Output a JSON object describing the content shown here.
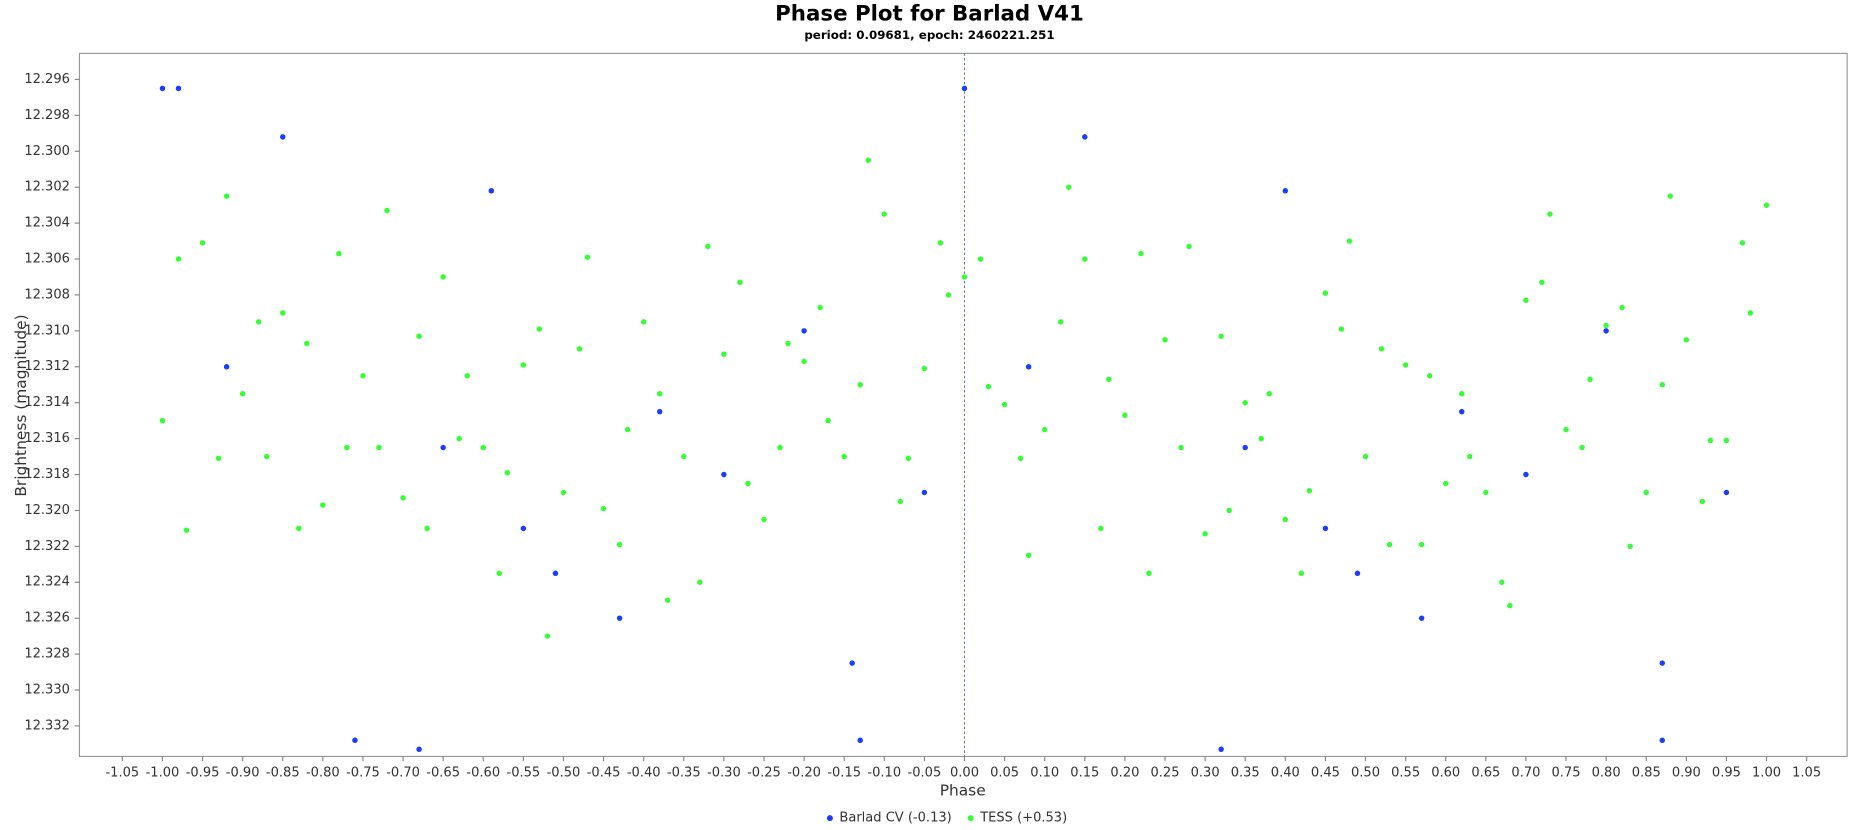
{
  "chart_data": {
    "type": "scatter",
    "title": "Phase Plot for Barlad V41",
    "subtitle": "period: 0.09681, epoch: 2460221.251",
    "x_label": "Phase",
    "y_label": "Brightness (magnitude)",
    "xlim": [
      -1.1035,
      1.1005
    ],
    "ylim": [
      12.29455,
      12.3337
    ],
    "invert_y": true,
    "grid": false,
    "legend_position": "bottom",
    "xticks": [
      -1.05,
      {
        "value": -1,
        "label": "-1.00"
      },
      -0.95,
      {
        "value": -0.9,
        "label": "-0.90"
      },
      -0.85,
      {
        "value": -0.8,
        "label": "-0.80"
      },
      -0.75,
      {
        "value": -0.7,
        "label": "-0.70"
      },
      -0.65,
      {
        "value": -0.6,
        "label": "-0.60"
      },
      -0.55,
      {
        "value": -0.5,
        "label": "-0.50"
      },
      -0.45,
      {
        "value": -0.4,
        "label": "-0.40"
      },
      -0.35,
      {
        "value": -0.3,
        "label": "-0.30"
      },
      -0.25,
      {
        "value": -0.2,
        "label": "-0.20"
      },
      -0.15,
      {
        "value": -0.1,
        "label": "-0.10"
      },
      -0.05,
      {
        "value": 0,
        "label": "0.00"
      },
      0.05,
      {
        "value": 0.1,
        "label": "0.10"
      },
      0.15,
      {
        "value": 0.2,
        "label": "0.20"
      },
      0.25,
      {
        "value": 0.3,
        "label": "0.30"
      },
      0.35,
      {
        "value": 0.4,
        "label": "0.40"
      },
      0.45,
      {
        "value": 0.5,
        "label": "0.50"
      },
      0.55,
      {
        "value": 0.6,
        "label": "0.60"
      },
      0.65,
      {
        "value": 0.7,
        "label": "0.70"
      },
      0.75,
      {
        "value": 0.8,
        "label": "0.80"
      },
      0.85,
      {
        "value": 0.9,
        "label": "0.90"
      },
      0.95,
      {
        "value": 1,
        "label": "1.00"
      },
      1.05
    ],
    "yticks": [
      12.296,
      12.298,
      {
        "value": 12.3,
        "label": "12.300"
      },
      12.302,
      12.304,
      12.306,
      12.308,
      {
        "value": 12.31,
        "label": "12.310"
      },
      12.312,
      12.314,
      12.316,
      12.318,
      {
        "value": 12.32,
        "label": "12.320"
      },
      12.322,
      12.324,
      12.326,
      12.328,
      {
        "value": 12.33,
        "label": "12.330"
      },
      12.332
    ],
    "series": [
      {
        "name": "TESS (+0.53)",
        "color": "#33ff33",
        "x": [
          -1,
          -0.95,
          -0.9,
          -0.85,
          -0.8,
          -0.75,
          -0.7,
          -0.65,
          -0.6,
          -0.55,
          -0.5,
          -0.45,
          -0.4,
          -0.35,
          -0.3,
          -0.25,
          -0.2,
          -0.15,
          -0.1,
          -0.05,
          0,
          0.05,
          0.1,
          0.15,
          0.2,
          0.25,
          0.3,
          0.35,
          0.4,
          0.45,
          0.5,
          0.55,
          0.6,
          0.65,
          0.7,
          0.75,
          0.8,
          0.85,
          0.9,
          0.95,
          1,
          -0.98,
          -0.93,
          -0.88,
          -0.83,
          -0.78,
          -0.73,
          -0.68,
          -0.63,
          -0.58,
          -0.53,
          -0.48,
          -0.43,
          -0.38,
          -0.33,
          -0.28,
          -0.23,
          -0.18,
          -0.13,
          -0.08,
          -0.03,
          0.02,
          0.07,
          0.12,
          0.17,
          0.22,
          0.27,
          0.32,
          0.37,
          0.42,
          0.47,
          0.52,
          0.57,
          0.62,
          0.67,
          0.72,
          0.77,
          0.82,
          0.87,
          0.92,
          0.97,
          -0.97,
          -0.92,
          -0.87,
          -0.82,
          -0.77,
          -0.72,
          -0.67,
          -0.62,
          -0.57,
          -0.52,
          -0.47,
          -0.42,
          -0.37,
          -0.32,
          -0.27,
          -0.22,
          -0.17,
          -0.12,
          -0.07,
          -0.02,
          0.03,
          0.08,
          0.13,
          0.18,
          0.23,
          0.28,
          0.33,
          0.38,
          0.43,
          0.48,
          0.53,
          0.58,
          0.63,
          0.68,
          0.73,
          0.78,
          0.83,
          0.88,
          0.93,
          0.98
        ],
        "values": [
          12.315,
          12.3051,
          12.3135,
          12.309,
          12.3197,
          12.3125,
          12.3193,
          12.307,
          12.3165,
          12.3119,
          12.319,
          12.3199,
          12.3095,
          12.317,
          12.3113,
          12.3205,
          12.3117,
          12.317,
          12.3035,
          12.3121,
          12.307,
          12.3141,
          12.3155,
          12.306,
          12.3147,
          12.3105,
          12.3213,
          12.314,
          12.3205,
          12.3079,
          12.317,
          12.3119,
          12.3185,
          12.319,
          12.3083,
          12.3155,
          12.3097,
          12.319,
          12.3105,
          12.3161,
          12.303,
          12.306,
          12.3171,
          12.3095,
          12.321,
          12.3057,
          12.3165,
          12.3103,
          12.316,
          12.3235,
          12.3099,
          12.311,
          12.3219,
          12.3135,
          12.324,
          12.3073,
          12.3165,
          12.3087,
          12.313,
          12.3195,
          12.3051,
          12.306,
          12.3171,
          12.3095,
          12.321,
          12.3057,
          12.3165,
          12.3103,
          12.316,
          12.3235,
          12.3099,
          12.311,
          12.3219,
          12.3135,
          12.324,
          12.3073,
          12.3165,
          12.3087,
          12.313,
          12.3195,
          12.3051,
          12.3211,
          12.3025,
          12.317,
          12.3107,
          12.3165,
          12.3033,
          12.321,
          12.3125,
          12.3179,
          12.327,
          12.3059,
          12.3155,
          12.325,
          12.3053,
          12.3185,
          12.3107,
          12.315,
          12.3005,
          12.3171,
          12.308,
          12.3131,
          12.3225,
          12.302,
          12.3127,
          12.3235,
          12.3053,
          12.32,
          12.3135,
          12.3189,
          12.305,
          12.3219,
          12.3125,
          12.317,
          12.3253,
          12.3035,
          12.3127,
          12.322,
          12.3025,
          12.3161,
          12.309
        ]
      },
      {
        "name": "Barlad CV (-0.13)",
        "color": "#1a3cff",
        "x": [
          -1,
          -0.98,
          0,
          -0.59,
          0.4,
          -0.76,
          -0.68,
          0.32,
          -0.13,
          0.87,
          -0.14,
          0.87,
          -0.51,
          0.49,
          -0.85,
          0.15,
          -0.43,
          0.57,
          -0.3,
          0.7,
          -0.92,
          0.08,
          -0.65,
          0.35,
          -0.2,
          0.8,
          -0.05,
          0.95,
          -0.38,
          0.62,
          -0.55,
          0.45
        ],
        "values": [
          12.2965,
          12.2965,
          12.2965,
          12.3022,
          12.3022,
          12.3328,
          12.3333,
          12.3333,
          12.3328,
          12.3328,
          12.3285,
          12.3285,
          12.3235,
          12.3235,
          12.2992,
          12.2992,
          12.326,
          12.326,
          12.318,
          12.318,
          12.312,
          12.312,
          12.3165,
          12.3165,
          12.31,
          12.31,
          12.319,
          12.319,
          12.3145,
          12.3145,
          12.321,
          12.321
        ]
      }
    ]
  }
}
